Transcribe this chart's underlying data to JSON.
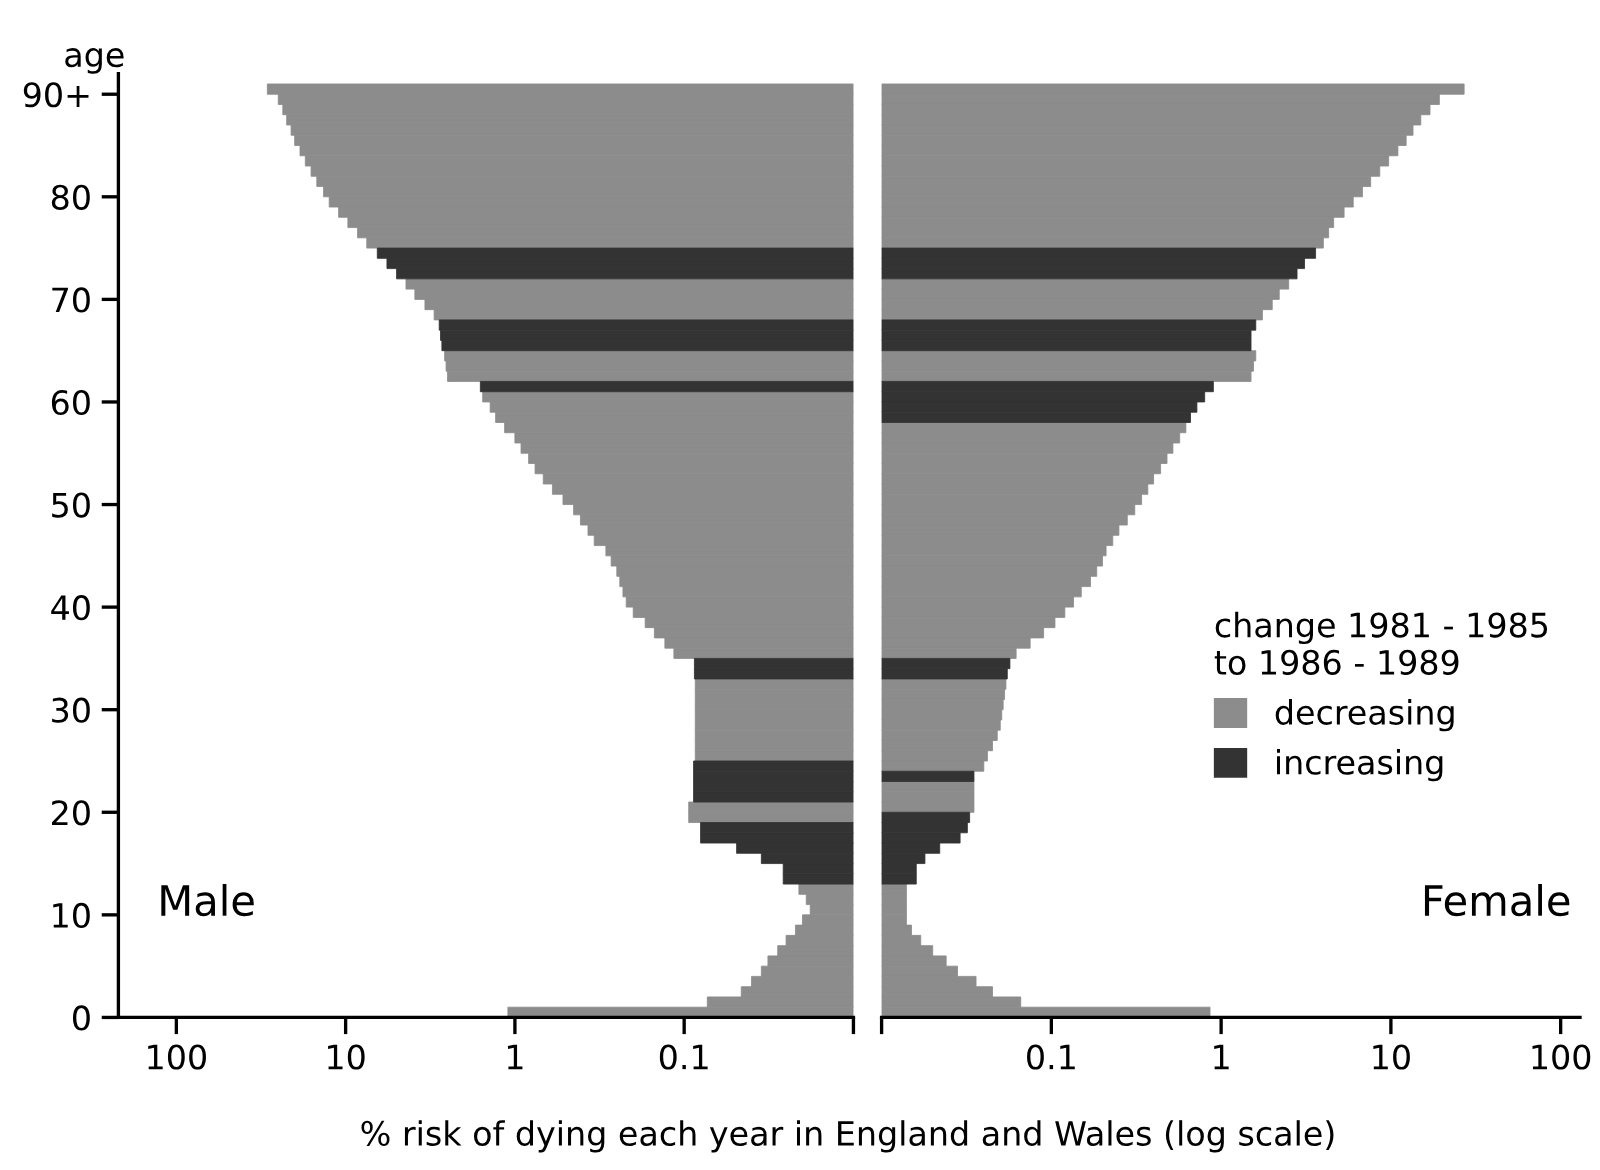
{
  "chart_data": [
    {
      "type": "bar",
      "orientation": "horizontal",
      "log": "x",
      "ylabel": "age",
      "xlabel": "% risk of dying each year in England and Wales (log scale)",
      "annotations": [
        "Male"
      ],
      "x": [
        0,
        1,
        2,
        3,
        4,
        5,
        6,
        7,
        8,
        9,
        10,
        11,
        12,
        13,
        14,
        15,
        16,
        17,
        18,
        19,
        20,
        21,
        22,
        23,
        24,
        25,
        26,
        27,
        28,
        29,
        30,
        31,
        32,
        33,
        34,
        35,
        36,
        37,
        38,
        39,
        40,
        41,
        42,
        43,
        44,
        45,
        46,
        47,
        48,
        49,
        50,
        51,
        52,
        53,
        54,
        55,
        56,
        57,
        58,
        59,
        60,
        61,
        62,
        63,
        64,
        65,
        66,
        67,
        68,
        69,
        70,
        71,
        72,
        73,
        74,
        75,
        76,
        77,
        78,
        79,
        80,
        81,
        82,
        83,
        84,
        85,
        86,
        87,
        88,
        89,
        90
      ],
      "xlim": [
        220,
        0.01
      ],
      "xticks": [
        100,
        10,
        1,
        0.1,
        {
          "value": 0.01,
          "label": null
        }
      ],
      "ylim": [
        0,
        92
      ],
      "yticks": [
        0,
        10,
        20,
        30,
        40,
        50,
        60,
        70,
        80,
        {
          "value": 90,
          "label": "90+"
        }
      ],
      "series": [
        {
          "color": "#8c8c8c",
          "values": [
            1.1,
            0.073,
            0.046,
            0.04,
            0.035,
            0.032,
            0.028,
            0.025,
            0.022,
            0.02,
            0.018,
            0.019,
            0.021,
            null,
            null,
            null,
            null,
            null,
            null,
            0.094,
            0.094,
            null,
            null,
            null,
            null,
            0.086,
            0.086,
            0.086,
            0.086,
            0.086,
            0.086,
            0.086,
            0.086,
            null,
            null,
            0.115,
            0.13,
            0.15,
            0.17,
            0.2,
            0.22,
            0.23,
            0.24,
            0.25,
            0.27,
            0.29,
            0.34,
            0.37,
            0.41,
            0.45,
            0.52,
            0.6,
            0.68,
            0.76,
            0.83,
            0.92,
            1.0,
            1.15,
            1.3,
            1.4,
            1.55,
            null,
            2.5,
            2.55,
            2.6,
            null,
            null,
            null,
            3.0,
            3.4,
            3.9,
            4.4,
            null,
            null,
            null,
            7.5,
            8.5,
            9.7,
            11,
            12.5,
            13.5,
            14.8,
            16,
            17.3,
            18.6,
            20,
            21,
            22.3,
            23.5,
            25,
            29
          ]
        },
        {
          "color": "#333333",
          "values": [
            null,
            null,
            null,
            null,
            null,
            null,
            null,
            null,
            null,
            null,
            null,
            null,
            null,
            0.026,
            0.026,
            0.035,
            0.049,
            0.08,
            0.08,
            null,
            null,
            0.088,
            0.088,
            0.088,
            0.088,
            null,
            null,
            null,
            null,
            null,
            null,
            null,
            null,
            0.087,
            0.087,
            null,
            null,
            null,
            null,
            null,
            null,
            null,
            null,
            null,
            null,
            null,
            null,
            null,
            null,
            null,
            null,
            null,
            null,
            null,
            null,
            null,
            null,
            null,
            null,
            null,
            null,
            1.6,
            null,
            null,
            null,
            2.7,
            2.75,
            2.8,
            null,
            null,
            null,
            null,
            5.0,
            5.7,
            6.5,
            null,
            null,
            null,
            null,
            null,
            null,
            null,
            null,
            null,
            null,
            null,
            null,
            null,
            null,
            null,
            null
          ]
        }
      ]
    },
    {
      "type": "bar",
      "orientation": "horizontal",
      "log": "x",
      "tick_labels": "x",
      "annotations": [
        "Female"
      ],
      "legend": "right",
      "legend_title": "change 1981 - 1985\nto 1986 - 1989",
      "x": [
        90,
        89,
        88,
        87,
        86,
        85,
        84,
        83,
        82,
        81,
        80,
        79,
        78,
        77,
        76,
        75,
        74,
        73,
        72,
        71,
        70,
        69,
        68,
        67,
        66,
        65,
        64,
        63,
        62,
        61,
        60,
        59,
        58,
        57,
        56,
        55,
        54,
        53,
        52,
        51,
        50,
        49,
        48,
        47,
        46,
        45,
        44,
        43,
        42,
        41,
        40,
        39,
        38,
        37,
        36,
        35,
        34,
        33,
        32,
        31,
        30,
        29,
        28,
        27,
        26,
        25,
        24,
        23,
        22,
        21,
        20,
        19,
        18,
        17,
        16,
        15,
        14,
        13,
        12,
        11,
        10,
        9,
        8,
        7,
        6,
        5,
        4,
        3,
        2,
        1,
        0
      ],
      "xlim": [
        0.01,
        130
      ],
      "xticks": [
        {
          "value": 0.01,
          "label": null
        },
        0.1,
        1,
        10,
        100
      ],
      "series": [
        {
          "name": "decreasing",
          "color": "#8c8c8c",
          "values": [
            27,
            19.3,
            17,
            15,
            13.5,
            12.3,
            11,
            9.7,
            8.6,
            7.6,
            6.8,
            6.0,
            5.3,
            4.6,
            4.3,
            4.0,
            null,
            null,
            null,
            2.5,
            2.2,
            2.0,
            1.75,
            null,
            null,
            null,
            1.6,
            1.55,
            1.5,
            null,
            null,
            null,
            null,
            0.62,
            0.57,
            0.52,
            0.48,
            0.44,
            0.4,
            0.37,
            0.34,
            0.31,
            0.28,
            0.25,
            0.23,
            0.21,
            0.2,
            0.185,
            0.17,
            0.15,
            0.135,
            0.12,
            0.105,
            0.09,
            0.075,
            0.062,
            null,
            null,
            0.054,
            0.053,
            0.052,
            0.051,
            0.05,
            0.048,
            0.045,
            0.042,
            0.04,
            null,
            0.035,
            0.035,
            0.035,
            null,
            null,
            null,
            null,
            null,
            null,
            null,
            0.014,
            0.014,
            0.014,
            0.014,
            0.015,
            0.017,
            0.02,
            0.024,
            0.028,
            0.036,
            0.045,
            0.066,
            0.86
          ]
        },
        {
          "name": "increasing",
          "color": "#333333",
          "values": [
            null,
            null,
            null,
            null,
            null,
            null,
            null,
            null,
            null,
            null,
            null,
            null,
            null,
            null,
            null,
            null,
            3.6,
            3.1,
            2.8,
            null,
            null,
            null,
            null,
            1.6,
            1.5,
            1.5,
            null,
            null,
            null,
            0.9,
            0.8,
            0.72,
            0.66,
            null,
            null,
            null,
            null,
            null,
            null,
            null,
            null,
            null,
            null,
            null,
            null,
            null,
            null,
            null,
            null,
            null,
            null,
            null,
            null,
            null,
            null,
            null,
            0.057,
            0.055,
            null,
            null,
            null,
            null,
            null,
            null,
            null,
            null,
            null,
            0.035,
            null,
            null,
            null,
            0.033,
            0.032,
            0.029,
            0.022,
            0.018,
            0.016,
            0.016,
            null,
            null,
            null,
            null,
            null,
            null,
            null,
            null,
            null,
            null,
            null,
            null,
            null
          ]
        }
      ]
    }
  ]
}
